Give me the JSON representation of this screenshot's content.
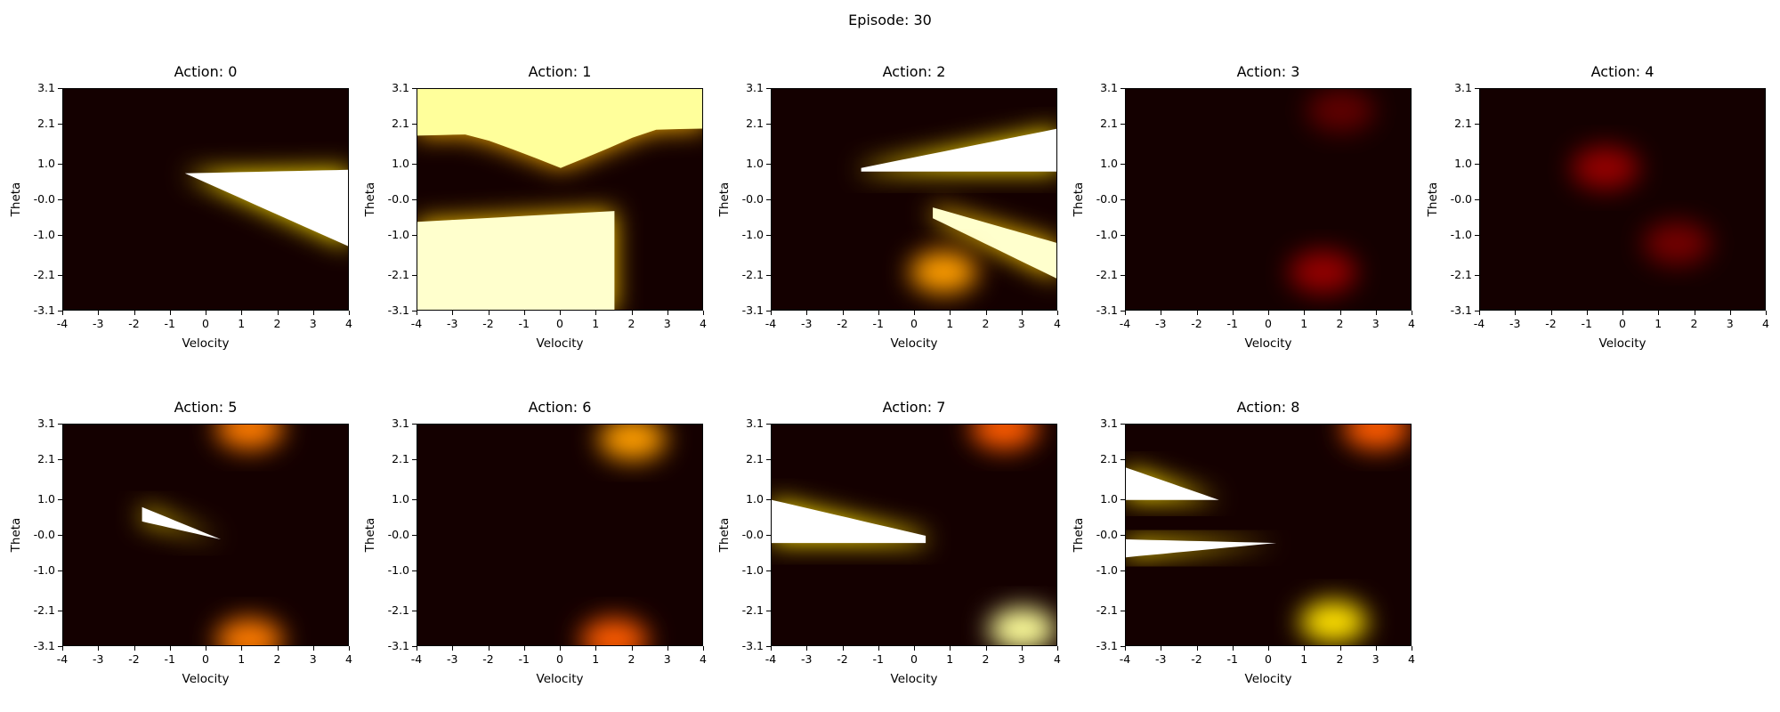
{
  "suptitle": "Episode: 30",
  "chart_data": [
    {
      "type": "heatmap",
      "title": "Action: 0",
      "xlabel": "Velocity",
      "ylabel": "Theta",
      "x_ticks": [
        "-4",
        "-3",
        "-2",
        "-1",
        "0",
        "1",
        "2",
        "3",
        "4"
      ],
      "y_ticks": [
        "3.1",
        "2.1",
        "1.0",
        "-0.0",
        "-1.0",
        "-2.1",
        "-3.1"
      ],
      "xlim": [
        -4,
        4
      ],
      "ylim": [
        -3.1,
        3.1
      ],
      "colormap": "hot",
      "regions": [
        {
          "shape": "wedge",
          "x_range": [
            -0.6,
            4
          ],
          "theta_top": [
            0.75,
            0.85
          ],
          "theta_bottom": [
            0.75,
            -1.3
          ],
          "intensity": 1.0
        }
      ]
    },
    {
      "type": "heatmap",
      "title": "Action: 1",
      "xlabel": "Velocity",
      "ylabel": "Theta",
      "x_ticks": [
        "-4",
        "-3",
        "-2",
        "-1",
        "0",
        "1",
        "2",
        "3",
        "4"
      ],
      "y_ticks": [
        "3.1",
        "2.1",
        "1.0",
        "-0.0",
        "-1.0",
        "-2.1",
        "-3.1"
      ],
      "xlim": [
        -4,
        4
      ],
      "ylim": [
        -3.1,
        3.1
      ],
      "colormap": "hot",
      "regions": [
        {
          "shape": "band",
          "x_range": [
            -4,
            4
          ],
          "theta_top": [
            3.1,
            3.1
          ],
          "theta_bottom": [
            1.8,
            2.0
          ],
          "dip_at": 0,
          "dip_to": 0.9,
          "intensity": 0.9
        },
        {
          "shape": "band",
          "x_range": [
            -4,
            1.5
          ],
          "theta_top": [
            -0.6,
            -0.3
          ],
          "theta_bottom": [
            -3.1,
            -3.1
          ],
          "intensity": 0.95
        }
      ]
    },
    {
      "type": "heatmap",
      "title": "Action: 2",
      "xlabel": "Velocity",
      "ylabel": "Theta",
      "x_ticks": [
        "-4",
        "-3",
        "-2",
        "-1",
        "0",
        "1",
        "2",
        "3",
        "4"
      ],
      "y_ticks": [
        "3.1",
        "2.1",
        "1.0",
        "-0.0",
        "-1.0",
        "-2.1",
        "-3.1"
      ],
      "xlim": [
        -4,
        4
      ],
      "ylim": [
        -3.1,
        3.1
      ],
      "colormap": "hot",
      "regions": [
        {
          "shape": "band",
          "x_range": [
            -1.5,
            4
          ],
          "theta_top": [
            0.9,
            2.0
          ],
          "theta_bottom": [
            0.8,
            0.8
          ],
          "intensity": 1.0
        },
        {
          "shape": "band",
          "x_range": [
            0.5,
            4
          ],
          "theta_top": [
            -0.2,
            -1.2
          ],
          "theta_bottom": [
            -0.5,
            -2.2
          ],
          "intensity": 0.95
        },
        {
          "shape": "blob",
          "x": 0.8,
          "y": -2.0,
          "intensity": 0.6
        }
      ]
    },
    {
      "type": "heatmap",
      "title": "Action: 3",
      "xlabel": "Velocity",
      "ylabel": "Theta",
      "x_ticks": [
        "-4",
        "-3",
        "-2",
        "-1",
        "0",
        "1",
        "2",
        "3",
        "4"
      ],
      "y_ticks": [
        "3.1",
        "2.1",
        "1.0",
        "-0.0",
        "-1.0",
        "-2.1",
        "-3.1"
      ],
      "xlim": [
        -4,
        4
      ],
      "ylim": [
        -3.1,
        3.1
      ],
      "colormap": "hot",
      "regions": [
        {
          "shape": "blob",
          "x": 1.5,
          "y": -2.0,
          "intensity": 0.2
        },
        {
          "shape": "blob",
          "x": 2.0,
          "y": 2.5,
          "intensity": 0.12
        }
      ]
    },
    {
      "type": "heatmap",
      "title": "Action: 4",
      "xlabel": "Velocity",
      "ylabel": "Theta",
      "x_ticks": [
        "-4",
        "-3",
        "-2",
        "-1",
        "0",
        "1",
        "2",
        "3",
        "4"
      ],
      "y_ticks": [
        "3.1",
        "2.1",
        "1.0",
        "-0.0",
        "-1.0",
        "-2.1",
        "-3.1"
      ],
      "xlim": [
        -4,
        4
      ],
      "ylim": [
        -3.1,
        3.1
      ],
      "colormap": "hot",
      "regions": [
        {
          "shape": "blob",
          "x": -0.5,
          "y": 0.9,
          "intensity": 0.2
        },
        {
          "shape": "blob",
          "x": 1.5,
          "y": -1.2,
          "intensity": 0.15
        }
      ]
    },
    {
      "type": "heatmap",
      "title": "Action: 5",
      "xlabel": "Velocity",
      "ylabel": "Theta",
      "x_ticks": [
        "-4",
        "-3",
        "-2",
        "-1",
        "0",
        "1",
        "2",
        "3",
        "4"
      ],
      "y_ticks": [
        "3.1",
        "2.1",
        "1.0",
        "-0.0",
        "-1.0",
        "-2.1",
        "-3.1"
      ],
      "xlim": [
        -4,
        4
      ],
      "ylim": [
        -3.1,
        3.1
      ],
      "colormap": "hot",
      "regions": [
        {
          "shape": "wedge",
          "x_range": [
            -1.8,
            0.4
          ],
          "theta_top": [
            0.8,
            -0.1
          ],
          "theta_bottom": [
            0.4,
            -0.1
          ],
          "intensity": 1.0
        },
        {
          "shape": "blob",
          "x": 1.2,
          "y": 3.0,
          "intensity": 0.55
        },
        {
          "shape": "blob",
          "x": 1.2,
          "y": -2.9,
          "intensity": 0.55
        }
      ]
    },
    {
      "type": "heatmap",
      "title": "Action: 6",
      "xlabel": "Velocity",
      "ylabel": "Theta",
      "x_ticks": [
        "-4",
        "-3",
        "-2",
        "-1",
        "0",
        "1",
        "2",
        "3",
        "4"
      ],
      "y_ticks": [
        "3.1",
        "2.1",
        "1.0",
        "-0.0",
        "-1.0",
        "-2.1",
        "-3.1"
      ],
      "xlim": [
        -4,
        4
      ],
      "ylim": [
        -3.1,
        3.1
      ],
      "colormap": "hot",
      "regions": [
        {
          "shape": "blob",
          "x": 2.0,
          "y": 2.7,
          "intensity": 0.6
        },
        {
          "shape": "blob",
          "x": 1.5,
          "y": -2.9,
          "intensity": 0.5
        }
      ]
    },
    {
      "type": "heatmap",
      "title": "Action: 7",
      "xlabel": "Velocity",
      "ylabel": "Theta",
      "x_ticks": [
        "-4",
        "-3",
        "-2",
        "-1",
        "0",
        "1",
        "2",
        "3",
        "4"
      ],
      "y_ticks": [
        "3.1",
        "2.1",
        "1.0",
        "-0.0",
        "-1.0",
        "-2.1",
        "-3.1"
      ],
      "xlim": [
        -4,
        4
      ],
      "ylim": [
        -3.1,
        3.1
      ],
      "colormap": "hot",
      "regions": [
        {
          "shape": "band",
          "x_range": [
            -4,
            0.3
          ],
          "theta_top": [
            1.0,
            0.0
          ],
          "theta_bottom": [
            -0.2,
            -0.2
          ],
          "intensity": 1.0
        },
        {
          "shape": "blob",
          "x": 3.0,
          "y": -2.6,
          "intensity": 0.9
        },
        {
          "shape": "blob",
          "x": 2.5,
          "y": 3.0,
          "intensity": 0.5
        }
      ]
    },
    {
      "type": "heatmap",
      "title": "Action: 8",
      "xlabel": "Velocity",
      "ylabel": "Theta",
      "x_ticks": [
        "-4",
        "-3",
        "-2",
        "-1",
        "0",
        "1",
        "2",
        "3",
        "4"
      ],
      "y_ticks": [
        "3.1",
        "2.1",
        "1.0",
        "-0.0",
        "-1.0",
        "-2.1",
        "-3.1"
      ],
      "xlim": [
        -4,
        4
      ],
      "ylim": [
        -3.1,
        3.1
      ],
      "colormap": "hot",
      "regions": [
        {
          "shape": "wedge",
          "x_range": [
            -4,
            -1.4
          ],
          "theta_top": [
            1.9,
            1.0
          ],
          "theta_bottom": [
            1.0,
            1.0
          ],
          "intensity": 1.0
        },
        {
          "shape": "band",
          "x_range": [
            -4,
            0.2
          ],
          "theta_top": [
            -0.1,
            -0.2
          ],
          "theta_bottom": [
            -0.6,
            -0.2
          ],
          "intensity": 1.0
        },
        {
          "shape": "blob",
          "x": 1.8,
          "y": -2.4,
          "intensity": 0.7
        },
        {
          "shape": "blob",
          "x": 3.0,
          "y": 3.0,
          "intensity": 0.5
        }
      ]
    }
  ]
}
